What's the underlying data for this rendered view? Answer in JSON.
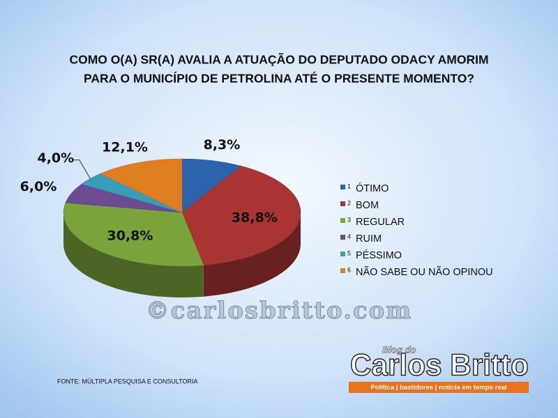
{
  "chart_data": {
    "type": "pie",
    "title": [
      "COMO O(A) SR(A) AVALIA A ATUAÇÃO DO DEPUTADO ODACY AMORIM",
      "PARA O MUNICÍPIO DE PETROLINA ATÉ O PRESENTE MOMENTO?"
    ],
    "categories": [
      "ÓTIMO",
      "BOM",
      "REGULAR",
      "RUIM",
      "PÉSSIMO",
      "NÃO SABE OU NÃO OPINOU"
    ],
    "legend_numbers": [
      "1",
      "2",
      "3",
      "4",
      "5",
      "6"
    ],
    "values": [
      8.3,
      38.8,
      30.8,
      6.0,
      4.0,
      12.1
    ],
    "value_labels": [
      "8,3%",
      "38,8%",
      "30,8%",
      "6,0%",
      "4,0%",
      "12,1%"
    ],
    "colors": [
      "#2d62ad",
      "#a83434",
      "#7ba33c",
      "#6b4c93",
      "#3a9cb8",
      "#e07d22"
    ],
    "legend": "right",
    "watermark": "©carlosbritto.com",
    "source": "FONTE: MÚLTIPLA PESQUISA E CONSULTORIA",
    "logo": {
      "small": "Blog do",
      "name": "Carlos Britto",
      "tagline": "Política | bastidores | notícia em tempo real"
    }
  }
}
